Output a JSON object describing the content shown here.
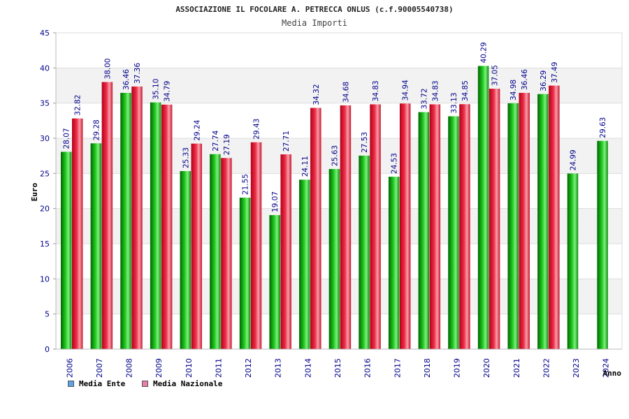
{
  "chart_data": {
    "type": "bar",
    "title": "ASSOCIAZIONE IL FOCOLARE A. PETRECCA ONLUS (c.f.90005540738)",
    "subtitle": "Media Importi",
    "xlabel": "Anno",
    "ylabel": "Euro",
    "ylim": [
      0,
      45
    ],
    "yticks": [
      0,
      5,
      10,
      15,
      20,
      25,
      30,
      35,
      40,
      45
    ],
    "grid": true,
    "legend_position": "bottom-left",
    "categories": [
      "2006",
      "2007",
      "2008",
      "2009",
      "2010",
      "2011",
      "2012",
      "2013",
      "2014",
      "2015",
      "2016",
      "2017",
      "2018",
      "2019",
      "2020",
      "2021",
      "2022",
      "2023",
      "2024"
    ],
    "series": [
      {
        "name": "Media Ente",
        "color": "#1aa81a",
        "legend_color": "#5fa2e8",
        "values": [
          28.07,
          29.28,
          36.46,
          35.1,
          25.33,
          27.74,
          21.55,
          19.07,
          24.11,
          25.63,
          27.53,
          24.53,
          33.72,
          33.13,
          40.29,
          34.98,
          36.29,
          24.99,
          29.63
        ],
        "labels": [
          "28.07",
          "29.28",
          "36.46",
          "35.10",
          "25.33",
          "27.74",
          "21.55",
          "19.07",
          "24.11",
          "25.63",
          "27.53",
          "24.53",
          "33.72",
          "33.13",
          "40.29",
          "34.98",
          "36.29",
          "24.99",
          "29.63"
        ]
      },
      {
        "name": "Media Nazionale",
        "color": "#e8283c",
        "legend_color": "#e87faa",
        "values": [
          32.82,
          38.0,
          37.36,
          34.79,
          29.24,
          27.19,
          29.43,
          27.71,
          34.32,
          34.68,
          34.83,
          34.94,
          34.83,
          34.85,
          37.05,
          36.46,
          37.49,
          null,
          null
        ],
        "labels": [
          "32.82",
          "38.00",
          "37.36",
          "34.79",
          "29.24",
          "27.19",
          "29.43",
          "27.71",
          "34.32",
          "34.68",
          "34.83",
          "34.94",
          "34.83",
          "34.85",
          "37.05",
          "36.46",
          "37.49",
          "",
          ""
        ]
      }
    ]
  }
}
